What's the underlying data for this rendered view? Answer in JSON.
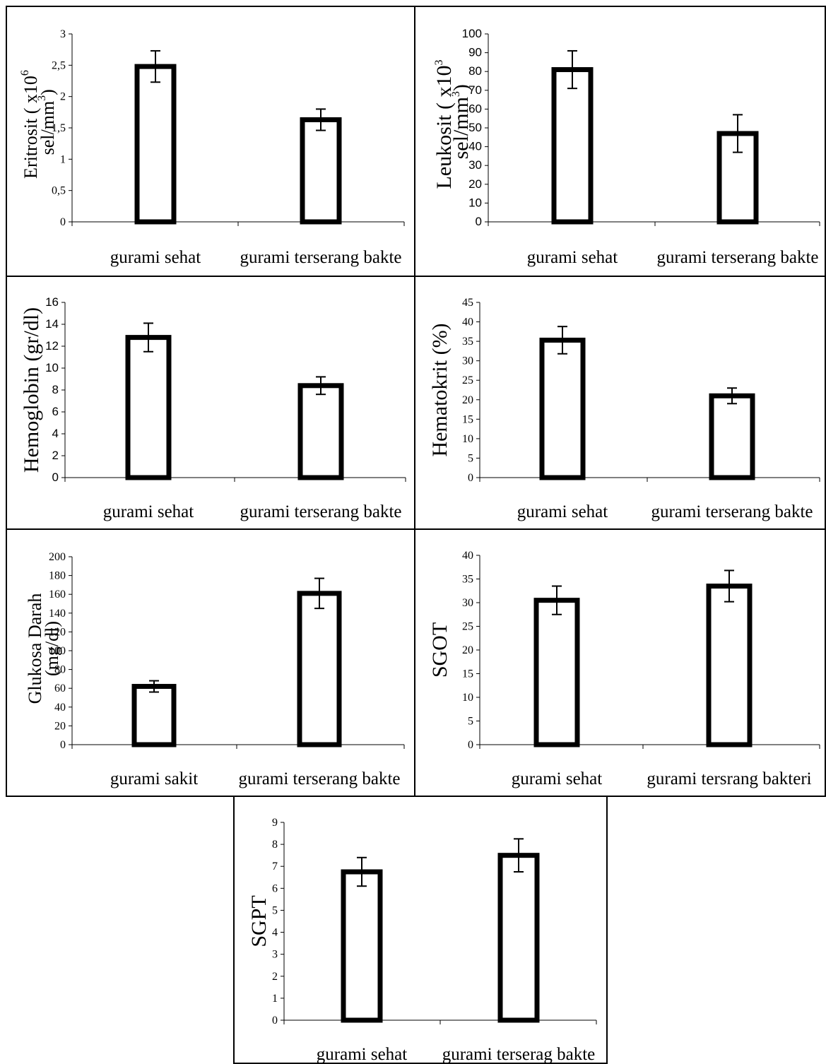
{
  "chart_data": [
    {
      "type": "bar",
      "categories": [
        "gurami sehat",
        "gurami terserang bakte"
      ],
      "series": [
        {
          "values": [
            2.48,
            1.63
          ],
          "error": [
            0.25,
            0.17
          ]
        }
      ],
      "ylabel": [
        "Eritrosit ( x10",
        "6",
        " sel/mm",
        "3",
        ")"
      ],
      "ylim": [
        0,
        3
      ],
      "yticks": [
        "0",
        "0,5",
        "1",
        "1,5",
        "2",
        "2,5",
        "3"
      ],
      "grid": false
    },
    {
      "type": "bar",
      "categories": [
        "gurami sehat",
        "gurami terserang bakte"
      ],
      "series": [
        {
          "values": [
            81,
            47
          ],
          "error": [
            10,
            10
          ]
        }
      ],
      "ylabel": [
        "Leukosit ( x10",
        "3",
        " sel/mm",
        "3",
        ")"
      ],
      "ylim": [
        0,
        100
      ],
      "yticks": [
        "0",
        "10",
        "20",
        "30",
        "40",
        "50",
        "60",
        "70",
        "80",
        "90",
        "100"
      ],
      "grid": false
    },
    {
      "type": "bar",
      "categories": [
        "gurami sehat",
        "gurami terserang bakte"
      ],
      "series": [
        {
          "values": [
            12.8,
            8.4
          ],
          "error": [
            1.3,
            0.8
          ]
        }
      ],
      "ylabel": [
        "Hemoglobin (gr/dl)"
      ],
      "ylim": [
        0,
        16
      ],
      "yticks": [
        "0",
        "2",
        "4",
        "6",
        "8",
        "10",
        "12",
        "14",
        "16"
      ],
      "grid": false
    },
    {
      "type": "bar",
      "categories": [
        "gurami sehat",
        "gurami terserang bakte"
      ],
      "series": [
        {
          "values": [
            35.3,
            21.0
          ],
          "error": [
            3.5,
            2.0
          ]
        }
      ],
      "ylabel": [
        "Hematokrit (%)"
      ],
      "ylim": [
        0,
        45
      ],
      "yticks": [
        "0",
        "5",
        "10",
        "15",
        "20",
        "25",
        "30",
        "35",
        "40",
        "45"
      ],
      "grid": false
    },
    {
      "type": "bar",
      "categories": [
        "gurami sakit",
        "gurami terserang bakte"
      ],
      "series": [
        {
          "values": [
            62,
            161
          ],
          "error": [
            6,
            16
          ]
        }
      ],
      "ylabel": [
        "Glukosa Darah",
        "(mg/dl)"
      ],
      "ylim": [
        0,
        200
      ],
      "yticks": [
        "0",
        "20",
        "40",
        "60",
        "80",
        "100",
        "120",
        "140",
        "160",
        "180",
        "200"
      ],
      "grid": false
    },
    {
      "type": "bar",
      "categories": [
        "gurami sehat",
        "gurami tersrang bakteri"
      ],
      "series": [
        {
          "values": [
            30.5,
            33.5
          ],
          "error": [
            3.0,
            3.3
          ]
        }
      ],
      "ylabel": [
        "SGOT"
      ],
      "ylim": [
        0,
        40
      ],
      "yticks": [
        "0",
        "5",
        "10",
        "15",
        "20",
        "25",
        "30",
        "35",
        "40"
      ],
      "grid": false
    },
    {
      "type": "bar",
      "categories": [
        "gurami sehat",
        "gurami terserag bakte"
      ],
      "series": [
        {
          "values": [
            6.75,
            7.5
          ],
          "error": [
            0.65,
            0.75
          ]
        }
      ],
      "ylabel": [
        "SGPT"
      ],
      "ylim": [
        0,
        9
      ],
      "yticks": [
        "0",
        "1",
        "2",
        "3",
        "4",
        "5",
        "6",
        "7",
        "8",
        "9"
      ],
      "grid": false
    }
  ]
}
